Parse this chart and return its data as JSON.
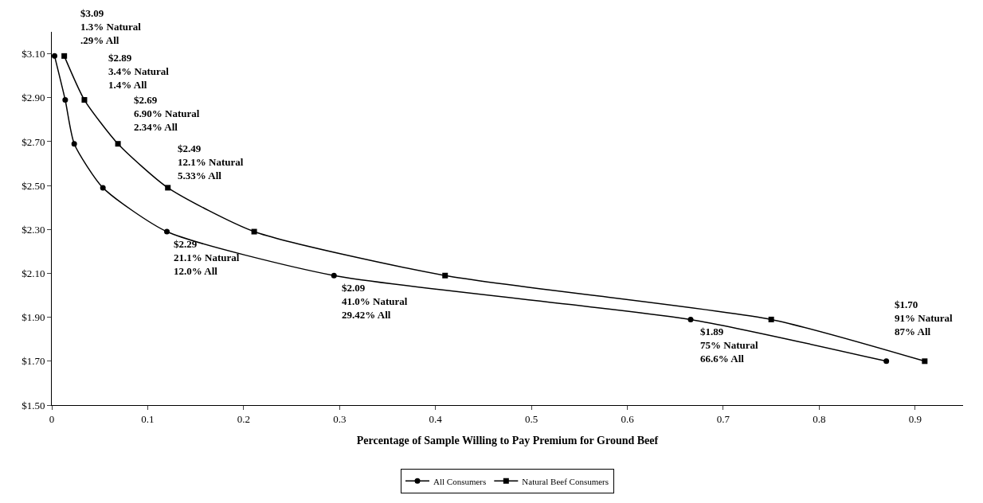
{
  "chart_data": {
    "type": "line",
    "xlabel": "Percentage of Sample Willing to Pay Premium for Ground Beef",
    "series": [
      {
        "name": "All Consumers",
        "color": "#000000",
        "marker": "circle",
        "x": [
          0.0029,
          0.014,
          0.0234,
          0.0533,
          0.12,
          0.2942,
          0.666,
          0.87
        ],
        "values": [
          3.09,
          2.89,
          2.69,
          2.49,
          2.29,
          2.09,
          1.89,
          1.7
        ]
      },
      {
        "name": "Natural Beef Consumers",
        "color": "#000000",
        "marker": "square",
        "x": [
          0.013,
          0.034,
          0.069,
          0.121,
          0.211,
          0.41,
          0.75,
          0.91
        ],
        "values": [
          3.09,
          2.89,
          2.69,
          2.49,
          2.29,
          2.09,
          1.89,
          1.7
        ]
      }
    ],
    "xlim": [
      0,
      0.95
    ],
    "xticks": [
      0,
      0.1,
      0.2,
      0.3,
      0.4,
      0.5,
      0.6,
      0.7,
      0.8,
      0.9
    ],
    "ylim": [
      1.5,
      3.2
    ],
    "yticks": [
      {
        "value": 1.5,
        "label": "$1.50"
      },
      {
        "value": 1.7,
        "label": "$1.70"
      },
      {
        "value": 1.9,
        "label": "$1.90"
      },
      {
        "value": 2.1,
        "label": "$2.10"
      },
      {
        "value": 2.3,
        "label": "$2.30"
      },
      {
        "value": 2.5,
        "label": "$2.50"
      },
      {
        "value": 2.7,
        "label": "$2.70"
      },
      {
        "value": 2.9,
        "label": "$2.90"
      },
      {
        "value": 3.1,
        "label": "$3.10"
      }
    ],
    "annotations": [
      {
        "text": "$3.09\n1.3% Natural\n.29% All",
        "x": 0.013,
        "y": 3.09
      },
      {
        "text": "$2.89\n3.4% Natural\n1.4% All",
        "x": 0.034,
        "y": 2.89
      },
      {
        "text": "$2.69\n6.90% Natural\n2.34% All",
        "x": 0.069,
        "y": 2.69
      },
      {
        "text": "$2.49\n12.1% Natural\n5.33% All",
        "x": 0.121,
        "y": 2.49
      },
      {
        "text": "$2.29\n21.1% Natural\n12.0% All",
        "x": 0.12,
        "y": 2.29
      },
      {
        "text": "$2.09\n41.0% Natural\n29.42% All",
        "x": 0.2942,
        "y": 2.09
      },
      {
        "text": "$1.89\n75% Natural\n66.6% All",
        "x": 0.666,
        "y": 1.89
      },
      {
        "text": "$1.70\n91% Natural\n87% All",
        "x": 0.91,
        "y": 1.7
      }
    ],
    "grid": false,
    "legend": "bottom"
  }
}
